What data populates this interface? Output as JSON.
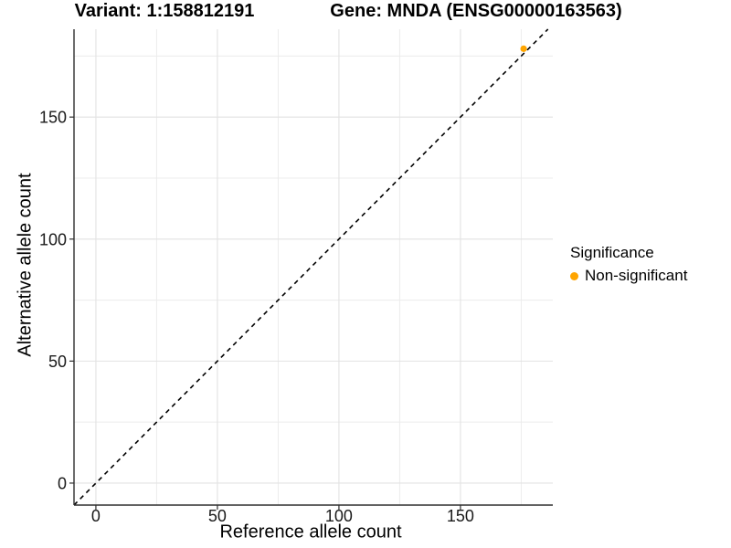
{
  "titles": {
    "variant": "Variant: 1:158812191",
    "gene": "Gene: MNDA (ENSG00000163563)"
  },
  "chart_data": {
    "type": "scatter",
    "title_left": "Variant: 1:158812191",
    "title_right": "Gene: MNDA (ENSG00000163563)",
    "xlabel": "Reference allele count",
    "ylabel": "Alternative allele count",
    "xlim": [
      -9,
      188
    ],
    "ylim": [
      -9,
      186
    ],
    "x_ticks": [
      0,
      50,
      100,
      150
    ],
    "y_ticks": [
      0,
      50,
      100,
      150
    ],
    "x_minor_ticks": [
      25,
      75,
      125,
      175
    ],
    "y_minor_ticks": [
      25,
      75,
      125,
      175
    ],
    "grid": true,
    "identity_line": {
      "style": "dashed",
      "color": "#000000",
      "from": -9,
      "to": 186
    },
    "series": [
      {
        "name": "Non-significant",
        "color": "#FFA500",
        "points": [
          {
            "x": 176,
            "y": 178
          }
        ]
      }
    ],
    "legend": {
      "title": "Significance",
      "position": "right",
      "items": [
        {
          "label": "Non-significant",
          "color": "#FFA500"
        }
      ]
    },
    "colors": {
      "grid_major": "#E2E2E2",
      "grid_minor": "#ECECEC",
      "axis_line": "#2E2E2E",
      "tick_text": "#1A1A1A"
    }
  }
}
